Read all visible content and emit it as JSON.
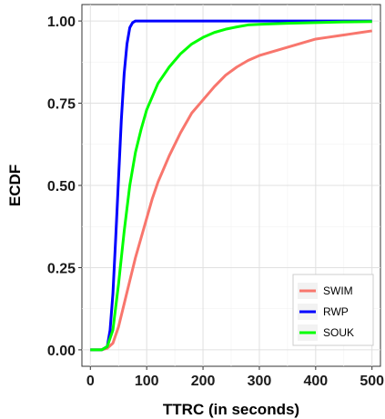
{
  "chart_data": {
    "type": "line",
    "xlabel": "TTRC (in seconds)",
    "ylabel": "ECDF",
    "xlim": [
      -15,
      515
    ],
    "ylim": [
      -0.05,
      1.05
    ],
    "x_ticks": [
      0,
      100,
      200,
      300,
      400,
      500
    ],
    "y_ticks": [
      0.0,
      0.25,
      0.5,
      0.75,
      1.0
    ],
    "x_tick_labels": [
      "0",
      "100",
      "200",
      "300",
      "400",
      "500"
    ],
    "y_tick_labels": [
      "0.00",
      "0.25",
      "0.50",
      "0.75",
      "1.00"
    ],
    "grid": true,
    "legend_position": "bottom-right",
    "series": [
      {
        "name": "SWIM",
        "color": "#F8766D",
        "x": [
          0,
          20,
          30,
          40,
          50,
          60,
          70,
          80,
          90,
          100,
          110,
          120,
          140,
          160,
          180,
          200,
          220,
          240,
          260,
          280,
          300,
          320,
          340,
          360,
          380,
          400,
          420,
          440,
          460,
          480,
          500
        ],
        "y": [
          0.0,
          0.0,
          0.005,
          0.02,
          0.07,
          0.14,
          0.21,
          0.28,
          0.34,
          0.4,
          0.46,
          0.51,
          0.59,
          0.66,
          0.72,
          0.76,
          0.8,
          0.835,
          0.86,
          0.88,
          0.895,
          0.905,
          0.915,
          0.925,
          0.935,
          0.945,
          0.95,
          0.955,
          0.96,
          0.965,
          0.97
        ]
      },
      {
        "name": "RWP",
        "color": "#0000FF",
        "x": [
          0,
          20,
          30,
          35,
          40,
          45,
          50,
          55,
          60,
          65,
          70,
          75,
          80,
          90,
          500
        ],
        "y": [
          0.0,
          0.0,
          0.01,
          0.06,
          0.17,
          0.34,
          0.52,
          0.7,
          0.84,
          0.93,
          0.98,
          0.995,
          1.0,
          1.0,
          1.0
        ]
      },
      {
        "name": "SOUK",
        "color": "#00FF00",
        "x": [
          0,
          20,
          30,
          40,
          50,
          60,
          70,
          80,
          90,
          100,
          120,
          140,
          160,
          180,
          200,
          220,
          240,
          260,
          280,
          300,
          350,
          400,
          450,
          500
        ],
        "y": [
          0.0,
          0.0,
          0.01,
          0.06,
          0.2,
          0.36,
          0.5,
          0.6,
          0.67,
          0.73,
          0.81,
          0.86,
          0.9,
          0.93,
          0.95,
          0.965,
          0.975,
          0.982,
          0.988,
          0.99,
          0.993,
          0.995,
          0.997,
          0.998
        ]
      }
    ]
  }
}
